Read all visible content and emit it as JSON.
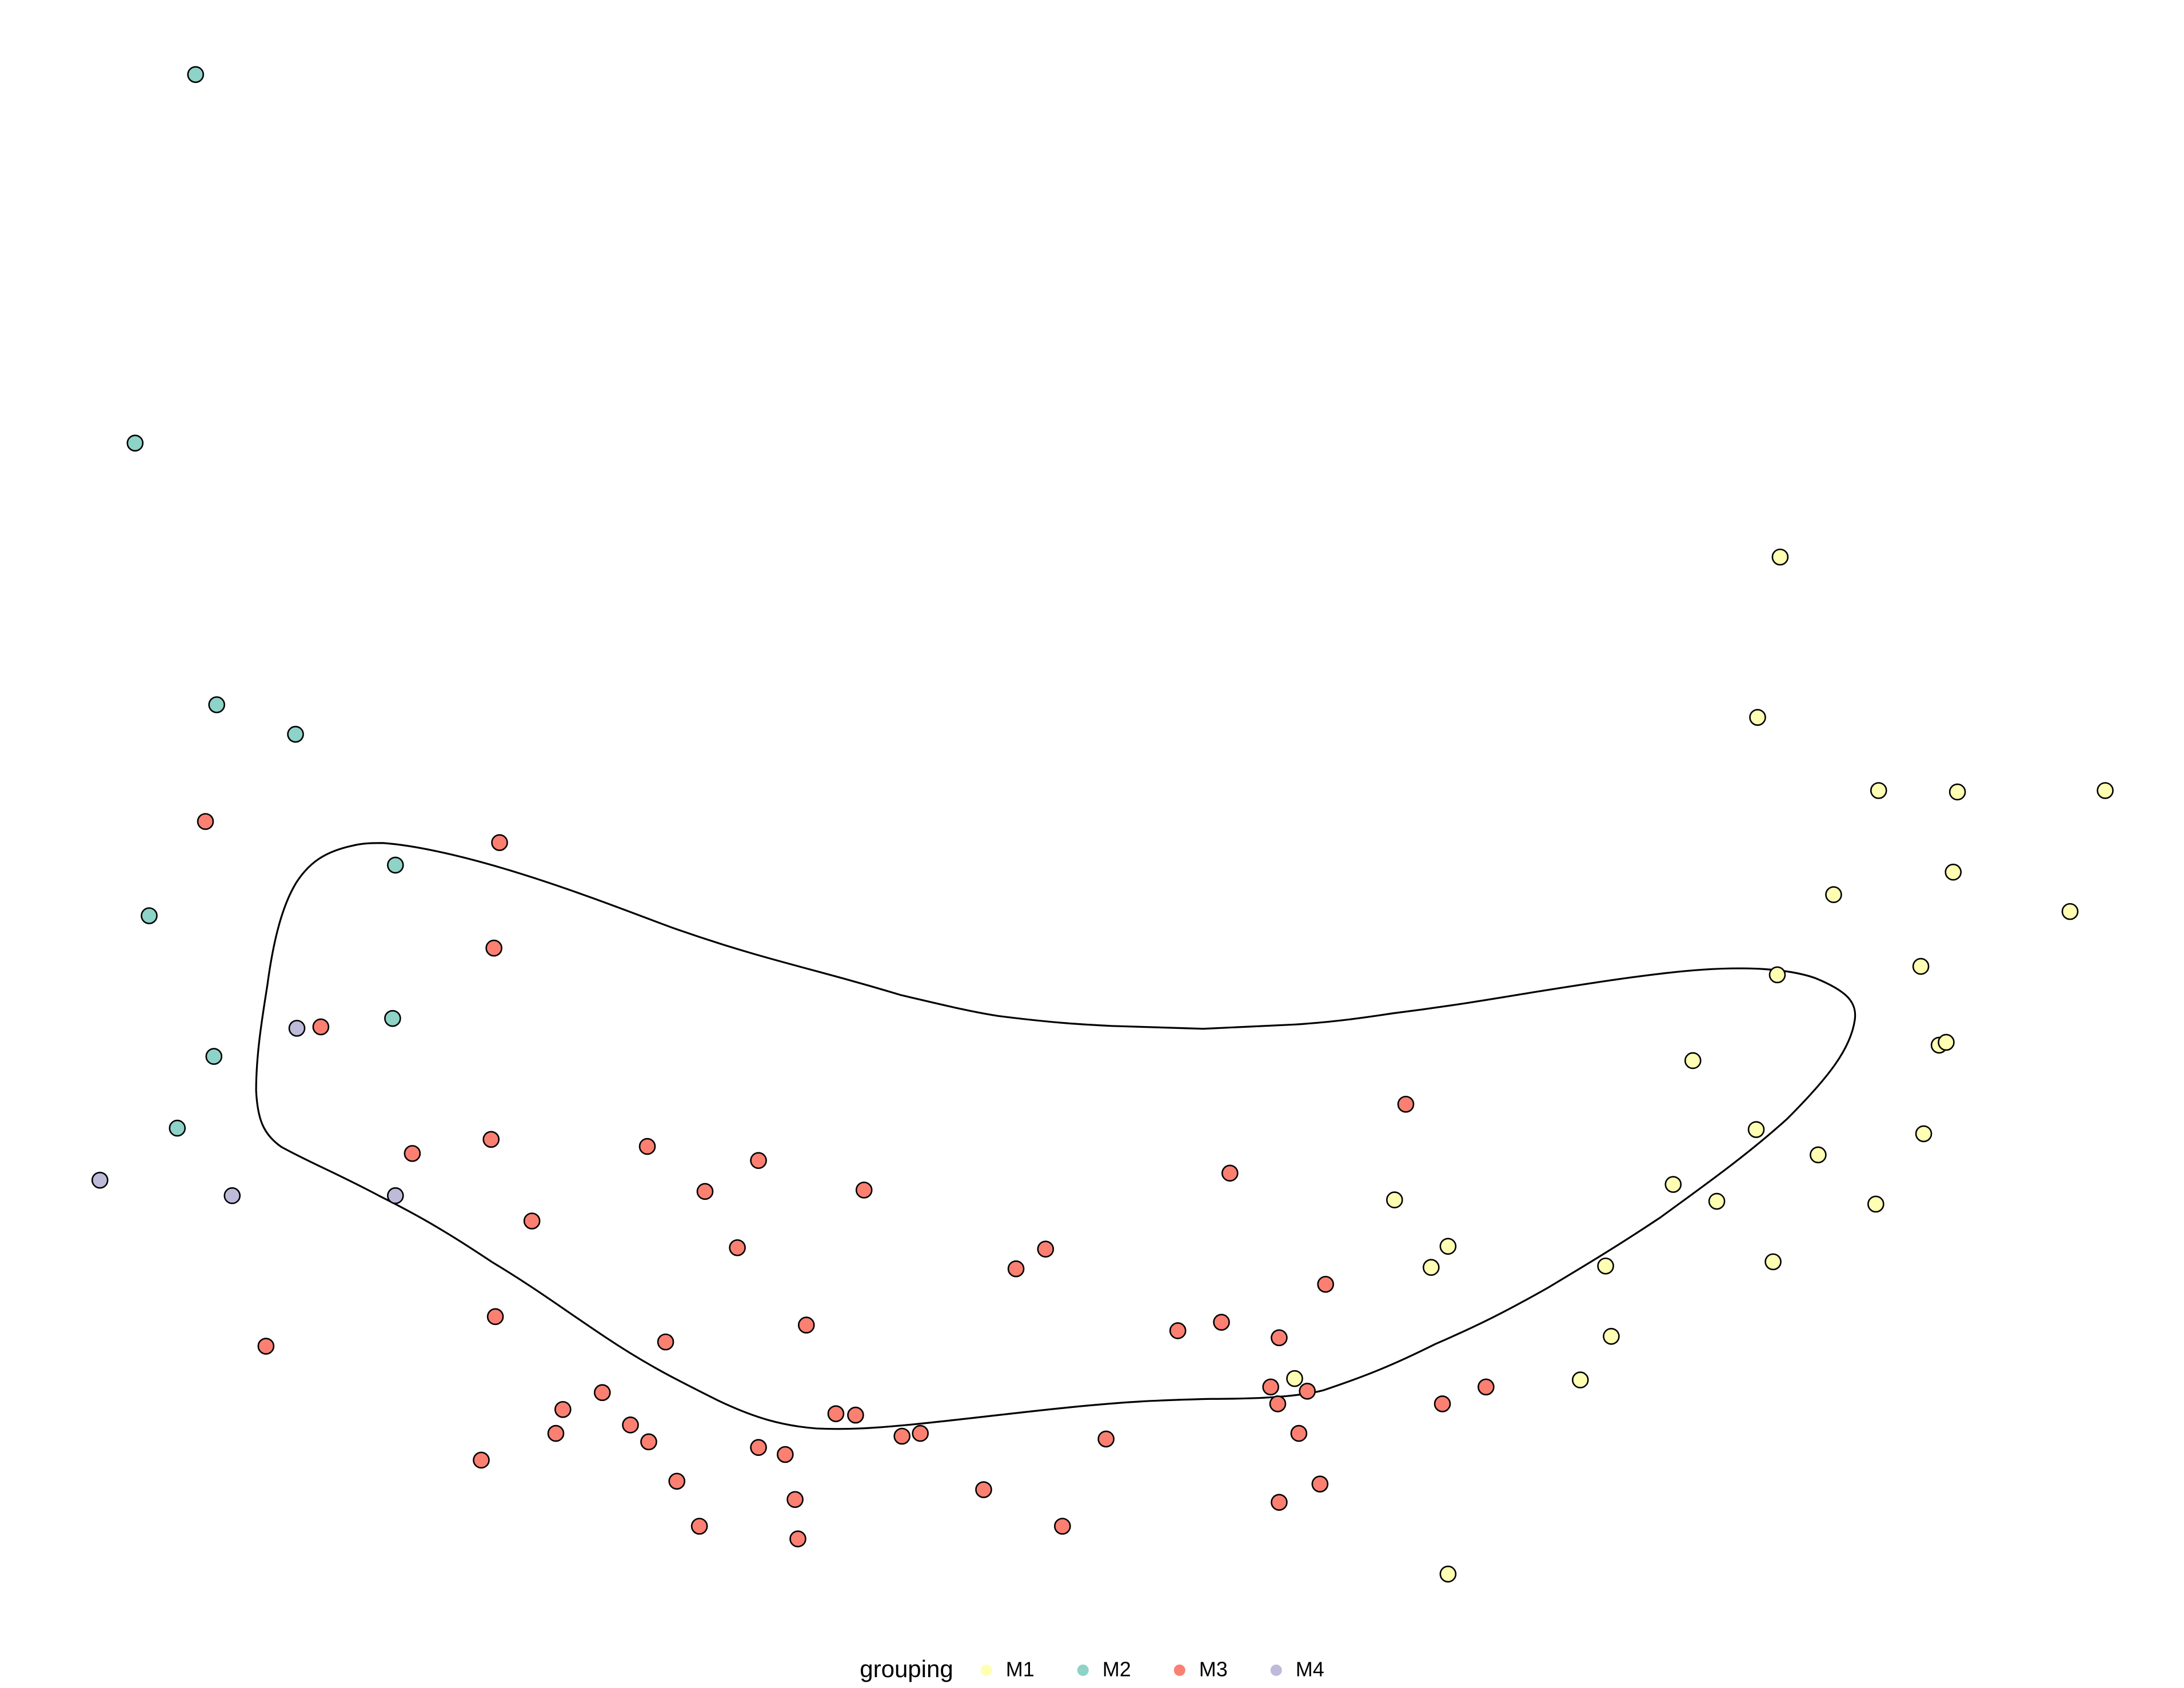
{
  "chart_data": {
    "type": "scatter",
    "legend_title": "grouping",
    "legend": "bottom",
    "xlim": [
      0,
      1552
    ],
    "ylim": [
      1200,
      0
    ],
    "series": [
      {
        "name": "M1",
        "color": "#ffffb3",
        "x": [
          1265,
          1249,
          1335,
          1391,
          1496,
          1303,
          1388,
          1471,
          1365,
          1263,
          1378,
          1383,
          1203,
          1248,
          1367,
          1292,
          1189,
          1220,
          1333,
          991,
          1029,
          1017,
          1141,
          1260,
          1145,
          920,
          1123,
          1029
        ],
        "y": [
          396,
          510,
          562,
          563,
          562,
          636,
          620,
          648,
          687,
          693,
          743,
          741,
          754,
          803,
          806,
          821,
          842,
          854,
          856,
          853,
          886,
          901,
          900,
          897,
          950,
          980,
          981,
          1119
        ]
      },
      {
        "name": "M2",
        "color": "#8dd3c7",
        "x": [
          139,
          96,
          154,
          210,
          281,
          106,
          279,
          152,
          126
        ],
        "y": [
          53,
          315,
          501,
          522,
          615,
          651,
          724,
          751,
          802
        ]
      },
      {
        "name": "M3",
        "color": "#fb8072",
        "x": [
          146,
          355,
          351,
          228,
          349,
          293,
          460,
          539,
          501,
          614,
          378,
          524,
          999,
          874,
          743,
          722,
          942,
          352,
          573,
          473,
          189,
          837,
          868,
          909,
          903,
          929,
          908,
          1025,
          1056,
          923,
          938,
          909,
          400,
          428,
          448,
          395,
          461,
          594,
          608,
          641,
          654,
          786,
          539,
          558,
          342,
          481,
          565,
          699,
          497,
          567,
          755
        ],
        "y": [
          584,
          599,
          674,
          730,
          810,
          820,
          815,
          825,
          847,
          846,
          868,
          887,
          785,
          834,
          888,
          902,
          913,
          936,
          942,
          954,
          957,
          946,
          940,
          951,
          986,
          989,
          998,
          998,
          986,
          1019,
          1055,
          1068,
          1002,
          990,
          1013,
          1019,
          1025,
          1005,
          1006,
          1021,
          1019,
          1023,
          1029,
          1034,
          1038,
          1053,
          1066,
          1059,
          1085,
          1094,
          1085
        ]
      },
      {
        "name": "M4",
        "color": "#bebada",
        "x": [
          71,
          165,
          281,
          211
        ],
        "y": [
          839,
          850,
          850,
          731
        ]
      }
    ]
  }
}
